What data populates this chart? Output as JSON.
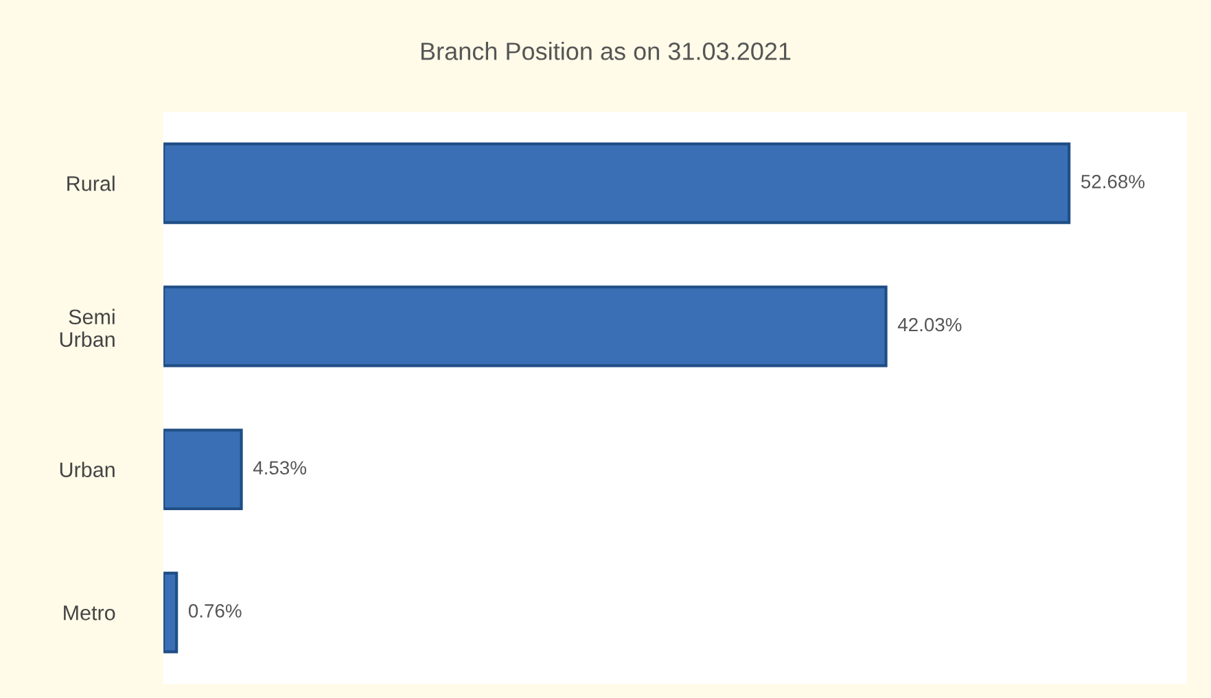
{
  "chart_data": {
    "type": "bar",
    "orientation": "horizontal",
    "title": "Branch Position as on 31.03.2021",
    "categories": [
      "Rural",
      "Semi\nUrban",
      "Urban",
      "Metro"
    ],
    "values": [
      52.68,
      42.03,
      4.53,
      0.76
    ],
    "value_labels": [
      "52.68%",
      "42.03%",
      "4.53%",
      "0.76%"
    ],
    "color": "#3a6fb5"
  }
}
